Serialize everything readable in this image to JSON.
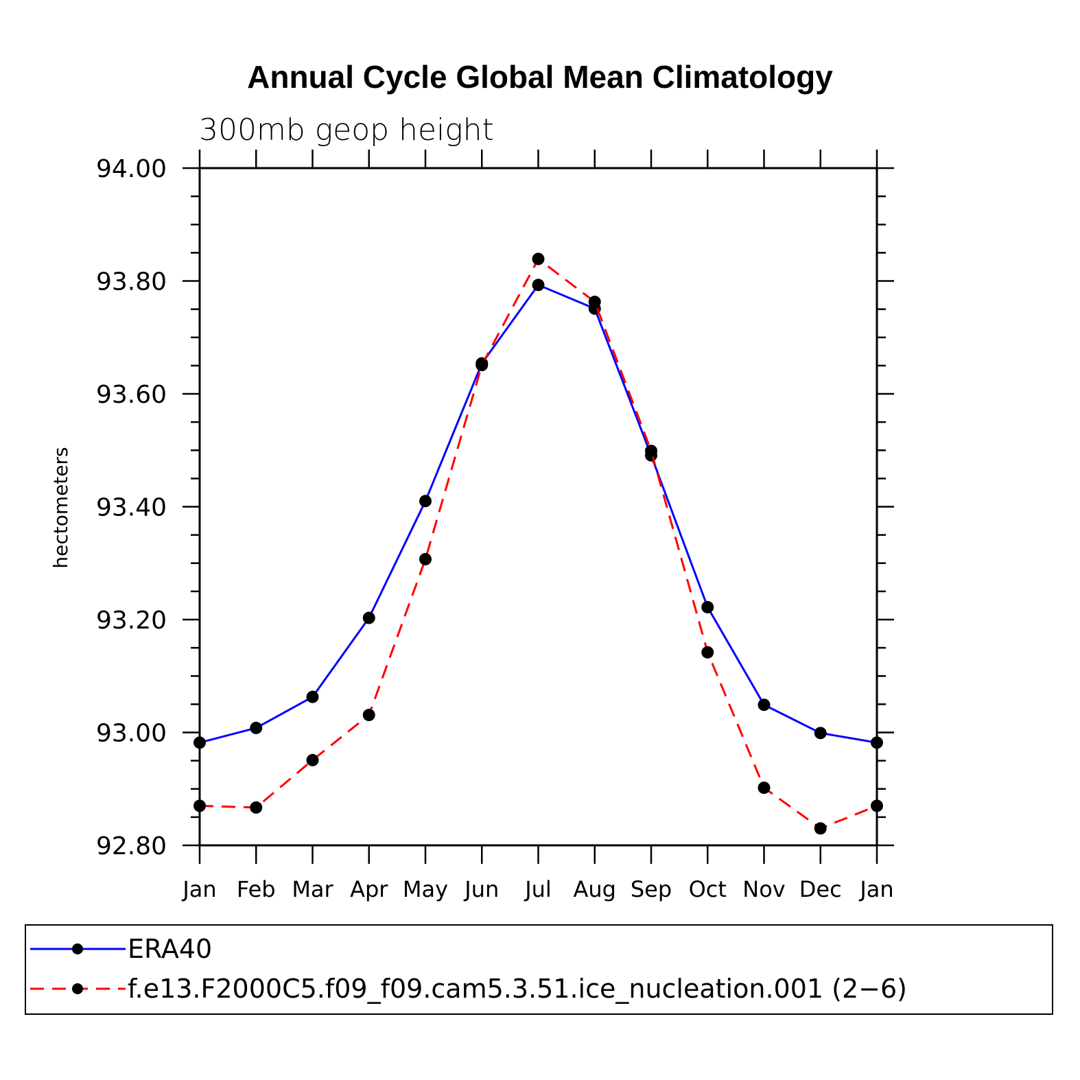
{
  "chart_data": {
    "type": "line",
    "title": "Annual Cycle Global Mean Climatology",
    "subtitle": "300mb geop height",
    "xlabel": "",
    "ylabel": "hectometers",
    "categories": [
      "Jan",
      "Feb",
      "Mar",
      "Apr",
      "May",
      "Jun",
      "Jul",
      "Aug",
      "Sep",
      "Oct",
      "Nov",
      "Dec",
      "Jan"
    ],
    "ylim": [
      92.8,
      94.0
    ],
    "yticks": [
      "92.80",
      "93.00",
      "93.20",
      "93.40",
      "93.60",
      "93.80",
      "94.00"
    ],
    "grid": false,
    "legend_position": "bottom",
    "series": [
      {
        "name": "ERA40",
        "color": "#0000ff",
        "dash": "solid",
        "values": [
          92.982,
          93.008,
          93.063,
          93.203,
          93.41,
          93.654,
          93.793,
          93.751,
          93.491,
          93.222,
          93.049,
          92.999,
          92.982
        ]
      },
      {
        "name": "f.e13.F2000C5.f09_f09.cam5.3.51.ice_nucleation.001 (2−6)",
        "color": "#ff0000",
        "dash": "dashed",
        "values": [
          92.87,
          92.867,
          92.951,
          93.031,
          93.307,
          93.651,
          93.839,
          93.763,
          93.499,
          93.142,
          92.902,
          92.83,
          92.87
        ]
      }
    ]
  }
}
